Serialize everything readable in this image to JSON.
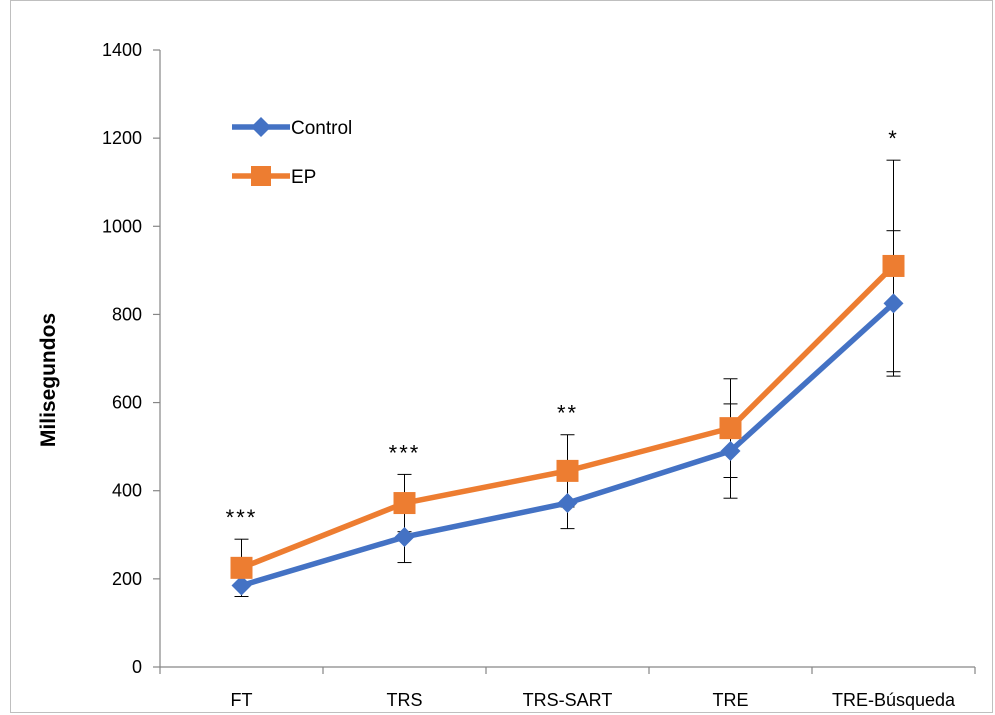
{
  "chart_data": {
    "type": "line",
    "ylabel": "Milisegundos",
    "ylim": [
      0,
      1400
    ],
    "yticks": [
      0,
      200,
      400,
      600,
      800,
      1000,
      1200,
      1400
    ],
    "categories": [
      "FT",
      "TRS",
      "TRS-SART",
      "TRE",
      "TRE-Búsqueda"
    ],
    "series": [
      {
        "name": "Control",
        "color": "#4472C4",
        "marker": "diamond",
        "values": [
          185,
          295,
          372,
          490,
          825
        ],
        "error": [
          25,
          58,
          58,
          107,
          165
        ]
      },
      {
        "name": "EP",
        "color": "#ED7D31",
        "marker": "square",
        "values": [
          225,
          372,
          445,
          542,
          910
        ],
        "error": [
          65,
          65,
          82,
          112,
          240
        ]
      }
    ],
    "annotations": [
      "***",
      "***",
      "**",
      "",
      "*"
    ],
    "legend_position": "top-left",
    "grid": false
  }
}
